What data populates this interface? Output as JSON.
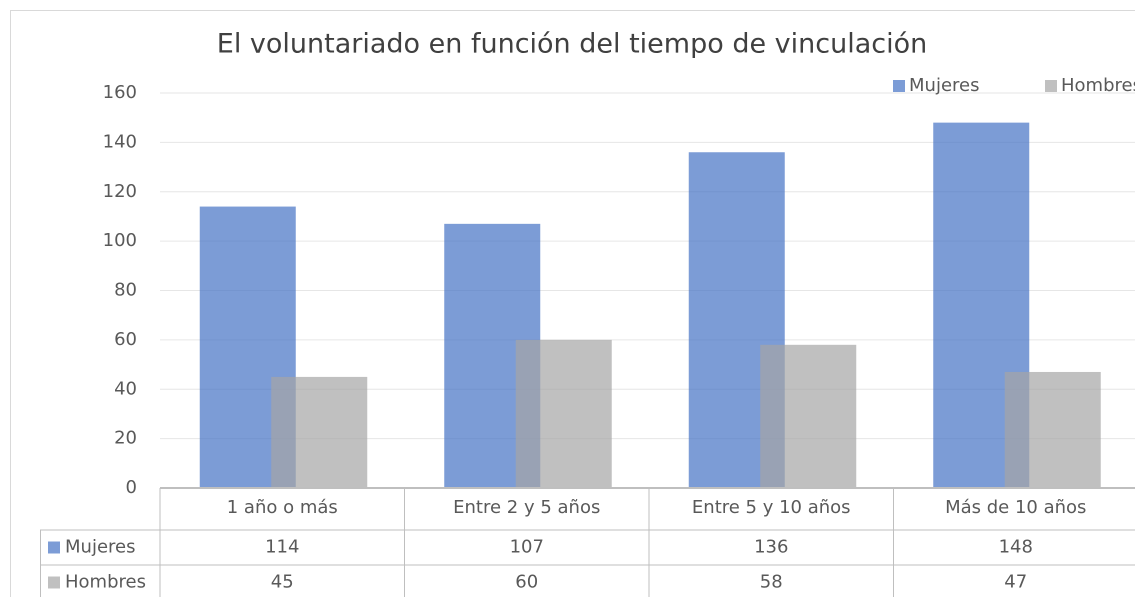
{
  "chart_data": {
    "type": "bar",
    "title": "El voluntariado en función del tiempo de vinculación",
    "categories": [
      "1 año o más",
      "Entre 2 y 5 años",
      "Entre 5 y 10 años",
      "Más de 10 años"
    ],
    "series": [
      {
        "name": "Mujeres",
        "color": "#4472c4",
        "values": [
          114,
          107,
          136,
          148
        ]
      },
      {
        "name": "Hombres",
        "color": "#a5a5a5",
        "values": [
          45,
          60,
          58,
          47
        ]
      }
    ],
    "ylim": [
      0,
      160
    ],
    "yticks": [
      0,
      20,
      40,
      60,
      80,
      100,
      120,
      140,
      160
    ],
    "grid": true,
    "legend": "top-right"
  }
}
